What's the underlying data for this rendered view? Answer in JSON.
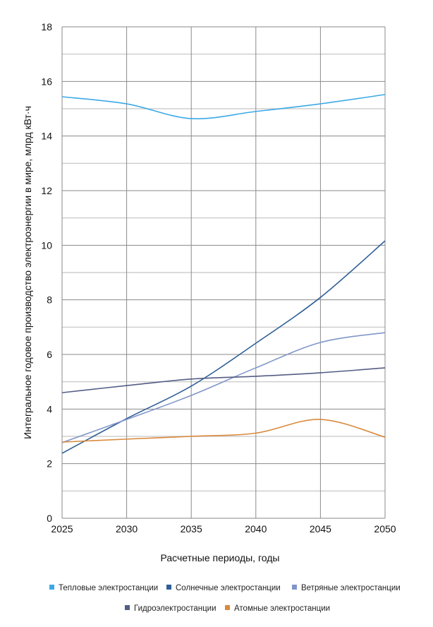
{
  "chart_data": {
    "type": "line",
    "title": "",
    "xlabel": "Расчетные периоды, годы",
    "ylabel": "Интегральное годовое производство электроэнергии в мире, млрд кВт·ч",
    "x": [
      2025,
      2030,
      2035,
      2040,
      2045,
      2050
    ],
    "xlim": [
      2025,
      2050
    ],
    "ylim": [
      0,
      18
    ],
    "xticks": [
      "2025",
      "2030",
      "2035",
      "2040",
      "2045",
      "2050"
    ],
    "yticks": [
      "0",
      "2",
      "4",
      "6",
      "8",
      "10",
      "12",
      "14",
      "16",
      "18"
    ],
    "grid": true,
    "legend_position": "bottom",
    "series": [
      {
        "name": "Тепловые электростанции",
        "color": "#3ba9e6",
        "values": [
          15.44,
          15.18,
          14.64,
          14.9,
          15.18,
          15.52
        ]
      },
      {
        "name": "Солнечные электростанции",
        "color": "#2e5f97",
        "values": [
          2.38,
          3.65,
          4.84,
          6.41,
          8.09,
          10.16
        ]
      },
      {
        "name": "Ветряные электростанции",
        "color": "#8096c8",
        "values": [
          2.77,
          3.62,
          4.5,
          5.51,
          6.44,
          6.8
        ]
      },
      {
        "name": "Гидроэлектростанции",
        "color": "#545d85",
        "values": [
          4.6,
          4.86,
          5.1,
          5.2,
          5.33,
          5.51
        ]
      },
      {
        "name": "Атомные электростанции",
        "color": "#d98a3e",
        "values": [
          2.79,
          2.9,
          3.0,
          3.12,
          3.62,
          2.97
        ]
      }
    ]
  }
}
